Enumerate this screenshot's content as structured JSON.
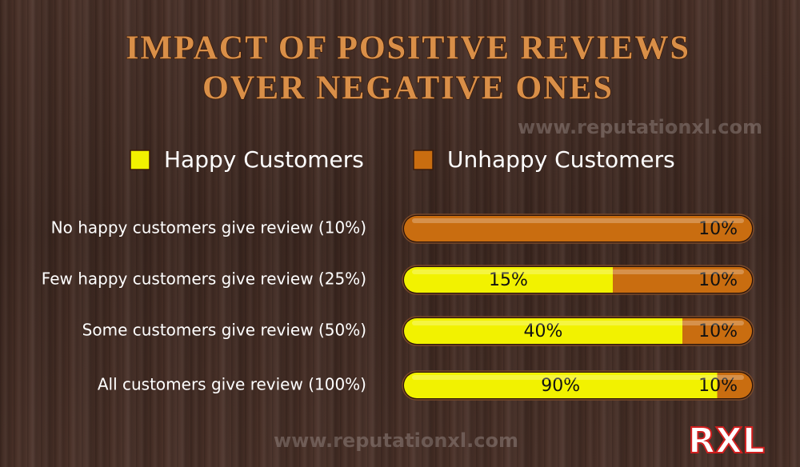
{
  "chart_data": {
    "type": "bar",
    "orientation": "horizontal",
    "stacked": true,
    "title": [
      "IMPACT OF POSITIVE REVIEWS",
      "OVER NEGATIVE ONES"
    ],
    "watermark": "www.reputationxl.com",
    "logo": "RXL",
    "categories": [
      "No happy customers give review (10%)",
      "Few happy customers give review (25%)",
      "Some customers give review (50%)",
      "All customers give review (100%)"
    ],
    "series": [
      {
        "name": "Happy Customers",
        "color": "#f2f200",
        "values": [
          null,
          15,
          40,
          90
        ],
        "value_labels": [
          null,
          "15%",
          "40%",
          "90%"
        ]
      },
      {
        "name": "Unhappy Customers",
        "color": "#c96d10",
        "values": [
          10,
          10,
          10,
          10
        ],
        "value_labels": [
          "10%",
          "10%",
          "10%",
          "10%"
        ]
      }
    ]
  }
}
